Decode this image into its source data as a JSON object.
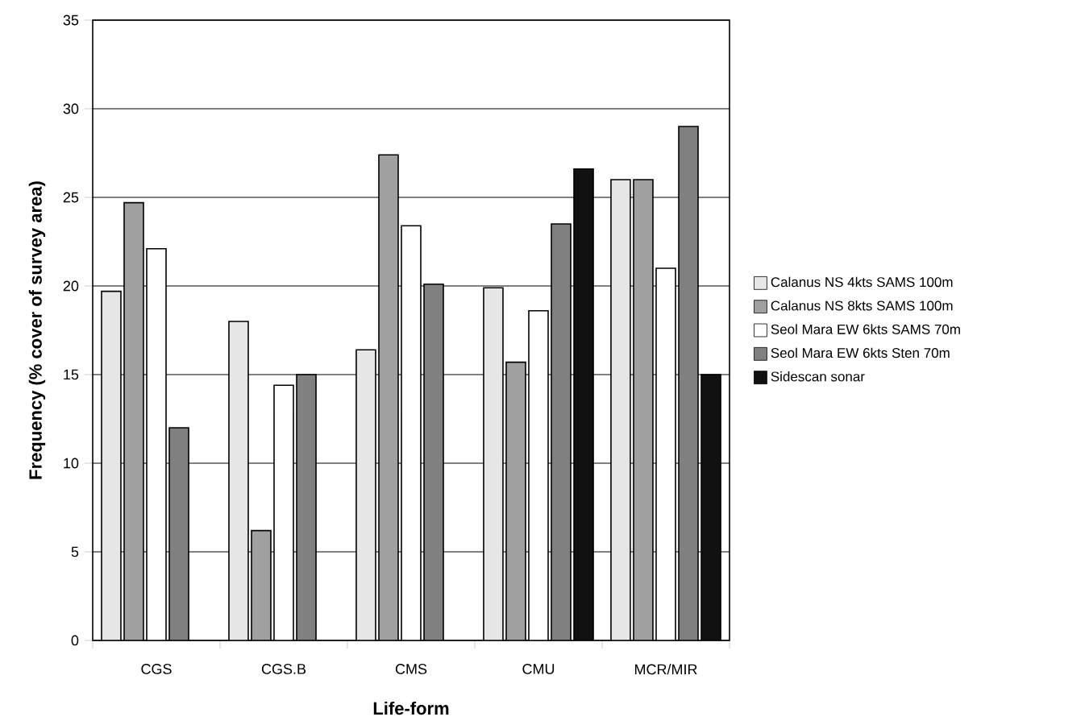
{
  "chart_data": {
    "type": "bar",
    "xlabel": "Life-form",
    "ylabel": "Frequency (% cover of survey area)",
    "categories": [
      "CGS",
      "CGS.B",
      "CMS",
      "CMU",
      "MCR/MIR"
    ],
    "series": [
      {
        "name": "Calanus NS 4kts SAMS 100m",
        "color": "#e6e6e6",
        "values": [
          19.7,
          18.0,
          16.4,
          19.9,
          26.0
        ]
      },
      {
        "name": "Calanus NS 8kts SAMS 100m",
        "color": "#a0a0a0",
        "values": [
          24.7,
          6.2,
          27.4,
          15.7,
          26.0
        ]
      },
      {
        "name": "Seol Mara EW 6kts SAMS 70m",
        "color": "#ffffff",
        "values": [
          22.1,
          14.4,
          23.4,
          18.6,
          21.0
        ]
      },
      {
        "name": "Seol Mara EW 6kts Sten 70m",
        "color": "#808080",
        "values": [
          12.0,
          15.0,
          20.1,
          23.5,
          29.0
        ]
      },
      {
        "name": "Sidescan sonar",
        "color": "#111111",
        "values": [
          null,
          null,
          null,
          26.6,
          15.0
        ]
      }
    ],
    "ylim": [
      0,
      35
    ],
    "yticks": [
      0,
      5,
      10,
      15,
      20,
      25,
      30,
      35
    ],
    "grid": "y",
    "legend": "right"
  }
}
